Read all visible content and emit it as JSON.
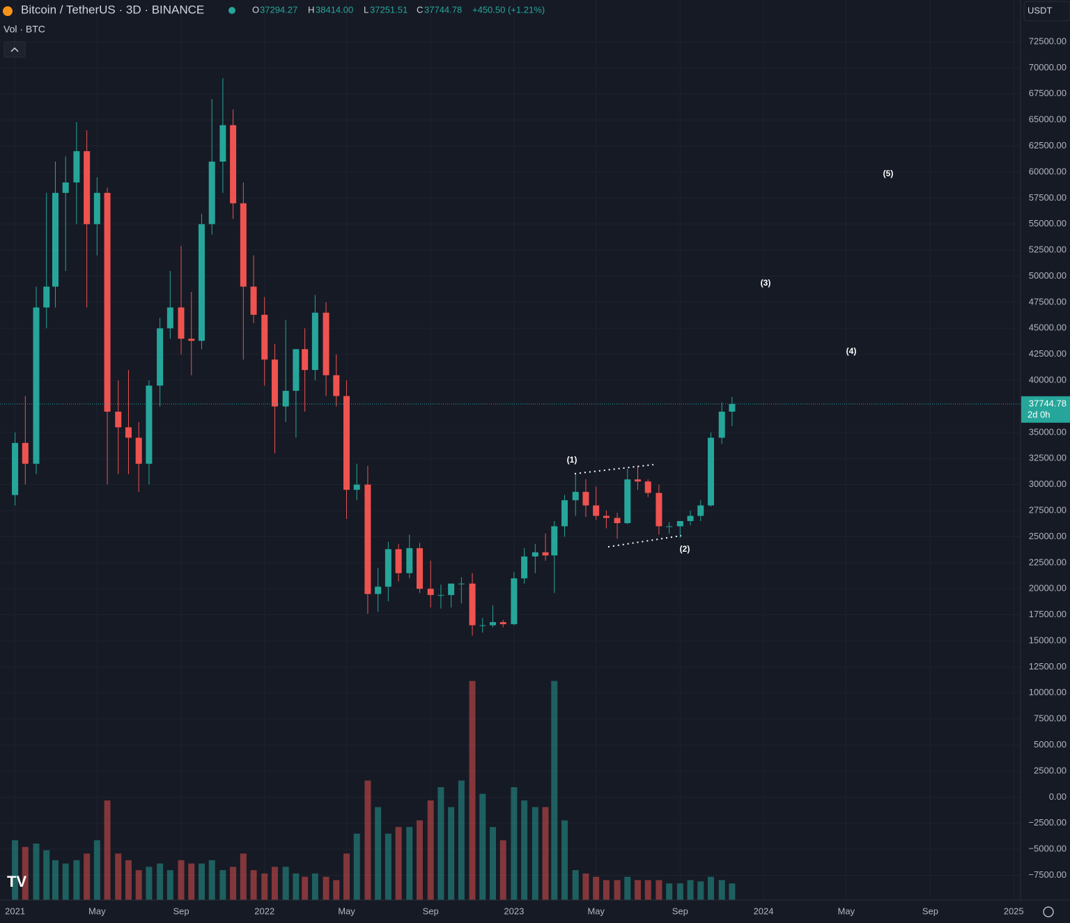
{
  "chart_data": {
    "type": "candlestick",
    "header": {
      "symbol": "Bitcoin / TetherUS · 3D · BINANCE",
      "o_label": "O",
      "open": "37294.27",
      "h_label": "H",
      "high": "38414.00",
      "l_label": "L",
      "low": "37251.51",
      "c_label": "C",
      "close": "37744.78",
      "change": "+450.50 (+1.21%)"
    },
    "volume_title": "Vol · BTC",
    "currency": "USDT",
    "last_price": {
      "value": 37744.78,
      "label": "37744.78",
      "countdown": "2d 0h"
    },
    "annotations": [
      "(1)",
      "(2)",
      "(3)",
      "(4)",
      "(5)"
    ],
    "up_color": "#26a69a",
    "down_color": "#ef5350",
    "grid": true,
    "x": [
      "2021-01-01",
      "2021-01-16",
      "2021-02-01",
      "2021-02-16",
      "2021-03-01",
      "2021-03-16",
      "2021-04-01",
      "2021-04-16",
      "2021-05-01",
      "2021-05-16",
      "2021-06-01",
      "2021-06-16",
      "2021-07-01",
      "2021-07-16",
      "2021-08-01",
      "2021-08-16",
      "2021-09-01",
      "2021-09-16",
      "2021-10-01",
      "2021-10-16",
      "2021-11-01",
      "2021-11-16",
      "2021-12-01",
      "2021-12-16",
      "2022-01-01",
      "2022-01-16",
      "2022-02-01",
      "2022-02-16",
      "2022-03-01",
      "2022-03-16",
      "2022-04-01",
      "2022-04-16",
      "2022-05-01",
      "2022-05-16",
      "2022-06-01",
      "2022-06-16",
      "2022-07-01",
      "2022-07-16",
      "2022-08-01",
      "2022-08-16",
      "2022-09-01",
      "2022-09-16",
      "2022-10-01",
      "2022-10-16",
      "2022-11-01",
      "2022-11-16",
      "2022-12-01",
      "2022-12-16",
      "2023-01-01",
      "2023-01-16",
      "2023-02-01",
      "2023-02-16",
      "2023-03-01",
      "2023-03-16",
      "2023-04-01",
      "2023-04-16",
      "2023-05-01",
      "2023-05-16",
      "2023-06-01",
      "2023-06-16",
      "2023-07-01",
      "2023-07-16",
      "2023-08-01",
      "2023-08-16",
      "2023-09-01",
      "2023-09-16",
      "2023-10-01",
      "2023-10-16",
      "2023-11-01",
      "2023-11-16"
    ],
    "open": [
      29000,
      34000,
      32000,
      47000,
      49000,
      58000,
      59000,
      62000,
      55000,
      58000,
      37000,
      35500,
      34500,
      32000,
      39500,
      45000,
      47000,
      44000,
      43800,
      55000,
      61000,
      64500,
      57000,
      49000,
      46300,
      42000,
      37500,
      39000,
      43000,
      41000,
      46500,
      40500,
      38500,
      29500,
      30000,
      19500,
      20200,
      23800,
      21500,
      23900,
      20000,
      19400,
      19400,
      20500,
      20500,
      16500,
      16500,
      16800,
      16600,
      21000,
      23100,
      23500,
      23200,
      26000,
      28500,
      29300,
      28000,
      27000,
      26800,
      26300,
      30500,
      30300,
      29200,
      26000,
      26000,
      26500,
      27000,
      28000,
      34500,
      37000
    ],
    "high": [
      35000,
      38500,
      49000,
      58000,
      61000,
      61500,
      64800,
      64000,
      59500,
      58500,
      40000,
      41000,
      36000,
      40000,
      46000,
      50500,
      52900,
      48500,
      56000,
      67000,
      69000,
      66000,
      59000,
      52000,
      48000,
      43500,
      45800,
      42500,
      45000,
      48200,
      47500,
      42500,
      40000,
      32000,
      31800,
      22000,
      24500,
      24300,
      25200,
      24400,
      22700,
      20400,
      20500,
      21100,
      21500,
      17200,
      18400,
      17000,
      21600,
      23900,
      24300,
      25300,
      26500,
      29000,
      31000,
      30500,
      29800,
      27500,
      27300,
      31500,
      31800,
      30500,
      30000,
      26400,
      26100,
      27500,
      28500,
      35000,
      37900,
      38414
    ],
    "low": [
      28000,
      30000,
      31000,
      45000,
      47000,
      50500,
      55000,
      47000,
      52000,
      30000,
      31000,
      31000,
      29300,
      30000,
      37500,
      44000,
      42500,
      40500,
      43000,
      54000,
      58000,
      55500,
      42000,
      45500,
      39500,
      33000,
      36000,
      34500,
      37000,
      40000,
      38500,
      37500,
      26700,
      28500,
      17600,
      17800,
      18800,
      20700,
      21000,
      19600,
      18200,
      18100,
      18200,
      18600,
      15500,
      15800,
      16300,
      16300,
      16500,
      20500,
      21500,
      22700,
      19600,
      25000,
      27000,
      26900,
      26600,
      25800,
      24800,
      26200,
      29500,
      28800,
      25200,
      25300,
      24900,
      26100,
      26500,
      27900,
      33900,
      35600
    ],
    "close": [
      34000,
      32000,
      47000,
      49000,
      58000,
      59000,
      62000,
      55000,
      58000,
      37000,
      35500,
      34500,
      32000,
      39500,
      45000,
      47000,
      44000,
      43800,
      55000,
      61000,
      64500,
      57000,
      49000,
      46300,
      42000,
      37500,
      39000,
      43000,
      41000,
      46500,
      40500,
      38500,
      29500,
      30000,
      19500,
      20200,
      23800,
      21500,
      23900,
      20000,
      19400,
      19400,
      20500,
      20500,
      16500,
      16500,
      16800,
      16600,
      21000,
      23100,
      23500,
      23200,
      26000,
      28500,
      29300,
      28000,
      27000,
      26800,
      26300,
      30500,
      30300,
      29200,
      26000,
      26000,
      26500,
      27000,
      28000,
      34500,
      37000,
      37744.78
    ],
    "volume": [
      90,
      80,
      85,
      75,
      60,
      55,
      60,
      70,
      90,
      150,
      70,
      60,
      45,
      50,
      55,
      45,
      60,
      55,
      55,
      60,
      45,
      50,
      70,
      45,
      40,
      50,
      50,
      40,
      35,
      40,
      35,
      30,
      70,
      100,
      180,
      140,
      100,
      110,
      110,
      120,
      150,
      170,
      140,
      180,
      330,
      160,
      110,
      90,
      170,
      150,
      140,
      140,
      330,
      120,
      45,
      40,
      35,
      30,
      30,
      35,
      30,
      30,
      30,
      25,
      25,
      30,
      28,
      35,
      30,
      25
    ],
    "vlim": [
      0,
      340
    ],
    "xlim": [
      "2020-12-10",
      "2025-01-11"
    ],
    "xticks": [
      {
        "value": "2021-01-01",
        "label": "2021"
      },
      {
        "value": "2021-05-01",
        "label": "May"
      },
      {
        "value": "2021-09-01",
        "label": "Sep"
      },
      {
        "value": "2022-01-01",
        "label": "2022"
      },
      {
        "value": "2022-05-01",
        "label": "May"
      },
      {
        "value": "2022-09-01",
        "label": "Sep"
      },
      {
        "value": "2023-01-01",
        "label": "2023"
      },
      {
        "value": "2023-05-01",
        "label": "May"
      },
      {
        "value": "2023-09-01",
        "label": "Sep"
      },
      {
        "value": "2024-01-01",
        "label": "2024"
      },
      {
        "value": "2024-05-01",
        "label": "May"
      },
      {
        "value": "2024-09-01",
        "label": "Sep"
      },
      {
        "value": "2025-01-01",
        "label": "2025"
      }
    ],
    "ylim": [
      -9872,
      76512
    ],
    "yticks": [
      {
        "value": -7500,
        "label": "−7500.00"
      },
      {
        "value": -5000,
        "label": "−5000.00"
      },
      {
        "value": -2500,
        "label": "−2500.00"
      },
      {
        "value": 0,
        "label": "0.00"
      },
      {
        "value": 2500,
        "label": "2500.00"
      },
      {
        "value": 5000,
        "label": "5000.00"
      },
      {
        "value": 7500,
        "label": "7500.00"
      },
      {
        "value": 10000,
        "label": "10000.00"
      },
      {
        "value": 12500,
        "label": "12500.00"
      },
      {
        "value": 15000,
        "label": "15000.00"
      },
      {
        "value": 17500,
        "label": "17500.00"
      },
      {
        "value": 20000,
        "label": "20000.00"
      },
      {
        "value": 22500,
        "label": "22500.00"
      },
      {
        "value": 25000,
        "label": "25000.00"
      },
      {
        "value": 27500,
        "label": "27500.00"
      },
      {
        "value": 30000,
        "label": "30000.00"
      },
      {
        "value": 32500,
        "label": "32500.00"
      },
      {
        "value": 35000,
        "label": "35000.00"
      },
      {
        "value": 40000,
        "label": "40000.00"
      },
      {
        "value": 42500,
        "label": "42500.00"
      },
      {
        "value": 45000,
        "label": "45000.00"
      },
      {
        "value": 47500,
        "label": "47500.00"
      },
      {
        "value": 50000,
        "label": "50000.00"
      },
      {
        "value": 52500,
        "label": "52500.00"
      },
      {
        "value": 55000,
        "label": "55000.00"
      },
      {
        "value": 57500,
        "label": "57500.00"
      },
      {
        "value": 60000,
        "label": "60000.00"
      },
      {
        "value": 62500,
        "label": "62500.00"
      },
      {
        "value": 65000,
        "label": "65000.00"
      },
      {
        "value": 67500,
        "label": "67500.00"
      },
      {
        "value": 70000,
        "label": "70000.00"
      },
      {
        "value": 72500,
        "label": "72500.00"
      }
    ]
  }
}
